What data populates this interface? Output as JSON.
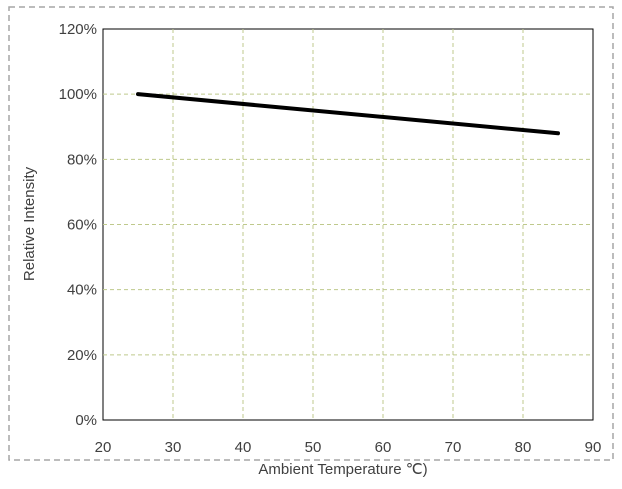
{
  "chart_data": {
    "type": "line",
    "title": "",
    "xlabel": "Ambient Temperature ℃)",
    "ylabel": "Relative Intensity",
    "xlim": [
      20,
      90
    ],
    "ylim": [
      0,
      120
    ],
    "x_ticks": [
      20,
      30,
      40,
      50,
      60,
      70,
      80,
      90
    ],
    "y_ticks": [
      0,
      20,
      40,
      60,
      80,
      100,
      120
    ],
    "y_tick_labels": [
      "0%",
      "20%",
      "40%",
      "60%",
      "80%",
      "100%",
      "120%"
    ],
    "x_tick_labels": [
      "20",
      "30",
      "40",
      "50",
      "60",
      "70",
      "80",
      "90"
    ],
    "grid": true,
    "legend": "none",
    "series": [
      {
        "x": [
          25,
          85
        ],
        "y": [
          100,
          88
        ],
        "color": "#000000"
      }
    ]
  }
}
